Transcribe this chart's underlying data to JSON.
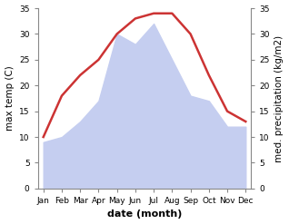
{
  "months": [
    "Jan",
    "Feb",
    "Mar",
    "Apr",
    "May",
    "Jun",
    "Jul",
    "Aug",
    "Sep",
    "Oct",
    "Nov",
    "Dec"
  ],
  "temperature": [
    10,
    18,
    22,
    25,
    30,
    33,
    34,
    34,
    30,
    22,
    15,
    13
  ],
  "precipitation": [
    9,
    10,
    13,
    17,
    30,
    28,
    32,
    25,
    18,
    17,
    12,
    12
  ],
  "temp_color": "#cc3333",
  "precip_fill_color": "#c5cef0",
  "background_color": "#ffffff",
  "ylabel_left": "max temp (C)",
  "ylabel_right": "med. precipitation (kg/m2)",
  "xlabel": "date (month)",
  "ylim": [
    0,
    35
  ],
  "yticks": [
    0,
    5,
    10,
    15,
    20,
    25,
    30,
    35
  ],
  "label_fontsize": 7.5,
  "tick_fontsize": 6.5,
  "xlabel_fontsize": 8,
  "line_width": 1.8
}
